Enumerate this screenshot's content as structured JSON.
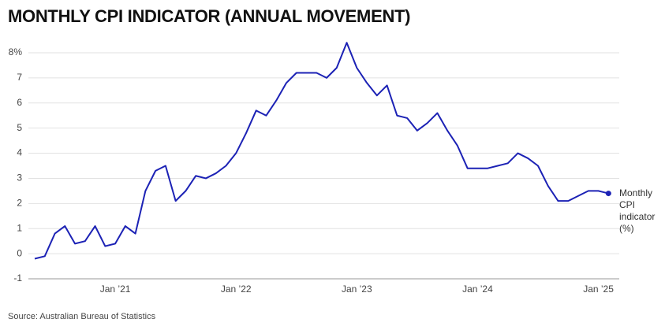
{
  "chart_data": {
    "type": "line",
    "title": "MONTHLY CPI INDICATOR (ANNUAL MOVEMENT)",
    "source": "Source: Australian Bureau of Statistics",
    "categories": [
      null,
      null,
      null,
      null,
      null,
      null,
      null,
      null,
      "Jan ’21",
      null,
      null,
      null,
      null,
      null,
      null,
      null,
      null,
      null,
      null,
      null,
      "Jan ’22",
      null,
      null,
      null,
      null,
      null,
      null,
      null,
      null,
      null,
      null,
      null,
      "Jan ’23",
      null,
      null,
      null,
      null,
      null,
      null,
      null,
      null,
      null,
      null,
      null,
      "Jan ’24",
      null,
      null,
      null,
      null,
      null,
      null,
      null,
      null,
      null,
      null,
      null,
      "Jan ’25",
      null
    ],
    "series": [
      {
        "name": "Monthly CPI indicator (%)",
        "color": "#1c22b5",
        "values": [
          -0.2,
          -0.1,
          0.8,
          1.1,
          0.4,
          0.5,
          1.1,
          0.3,
          0.4,
          1.1,
          0.8,
          2.5,
          3.3,
          3.5,
          2.1,
          2.5,
          3.1,
          3.0,
          3.2,
          3.5,
          4.0,
          4.8,
          5.7,
          5.5,
          6.1,
          6.8,
          7.2,
          7.2,
          7.2,
          7.0,
          7.4,
          8.4,
          7.4,
          6.8,
          6.3,
          6.7,
          5.5,
          5.4,
          4.9,
          5.2,
          5.6,
          4.9,
          4.3,
          3.4,
          3.4,
          3.4,
          3.5,
          3.6,
          4.0,
          3.8,
          3.5,
          2.7,
          2.1,
          2.1,
          2.3,
          2.5,
          2.5,
          2.4
        ]
      }
    ],
    "ylim": [
      -1,
      8
    ],
    "yticks": [
      -1,
      0,
      1,
      2,
      3,
      4,
      5,
      6,
      7,
      {
        "value": 8,
        "label": "8%"
      }
    ],
    "grid": true
  }
}
